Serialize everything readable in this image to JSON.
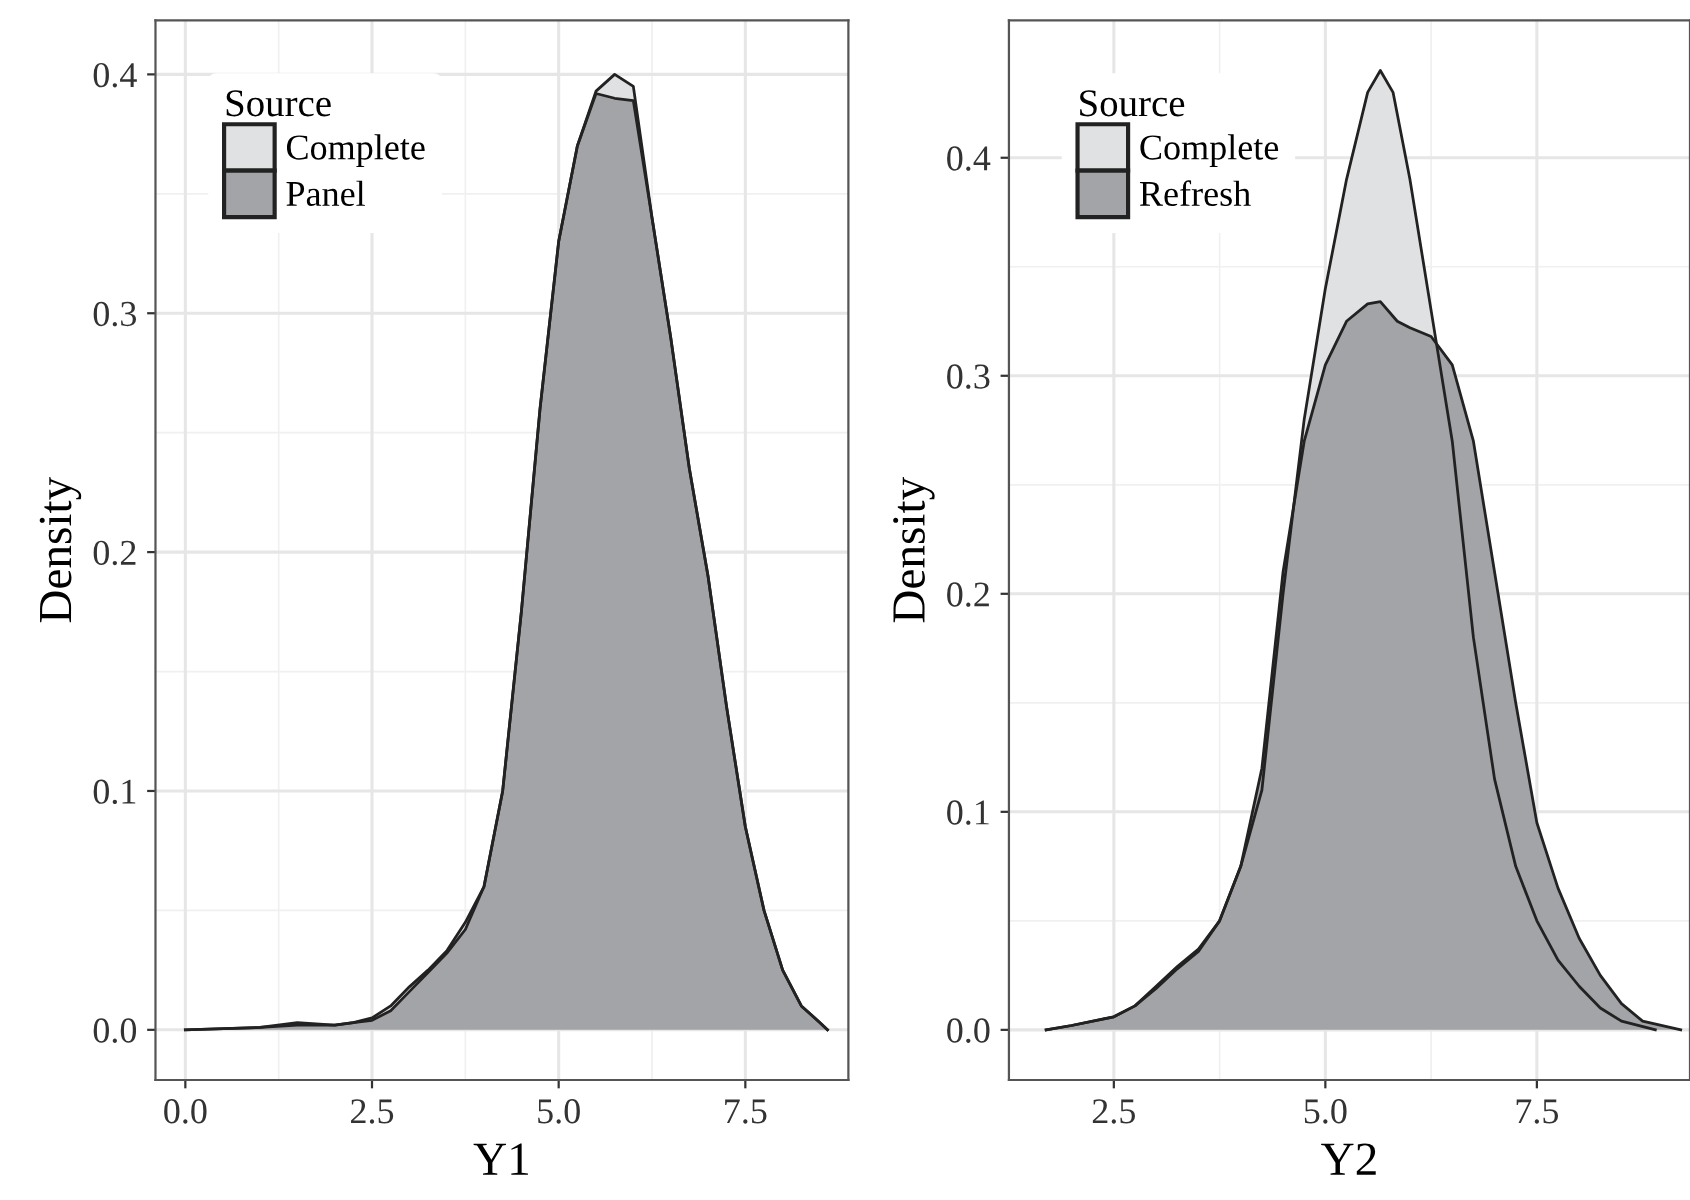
{
  "chart_data": [
    {
      "type": "area",
      "xlabel": "Y1",
      "ylabel": "Density",
      "legend_title": "Source",
      "legend": "top left",
      "grid": true,
      "xlim": [
        -0.4,
        8.88
      ],
      "ylim": [
        -0.021,
        0.4226
      ],
      "xticks": [
        {
          "value": 0,
          "label": "0.0"
        },
        {
          "value": 2.5,
          "label": "2.5"
        },
        {
          "value": 5,
          "label": "5.0"
        },
        {
          "value": 7.5,
          "label": "7.5"
        }
      ],
      "yticks": [
        {
          "value": 0,
          "label": "0.0"
        },
        {
          "value": 0.1,
          "label": "0.1"
        },
        {
          "value": 0.2,
          "label": "0.2"
        },
        {
          "value": 0.3,
          "label": "0.3"
        },
        {
          "value": 0.4,
          "label": "0.4"
        }
      ],
      "series": [
        {
          "name": "Complete",
          "color": "#e0e1e3",
          "x": [
            0,
            1.0,
            1.5,
            2.0,
            2.25,
            2.5,
            2.75,
            3.0,
            3.25,
            3.5,
            3.75,
            4.0,
            4.25,
            4.5,
            4.75,
            5.0,
            5.25,
            5.5,
            5.75,
            6.0,
            6.25,
            6.5,
            6.75,
            7.0,
            7.25,
            7.5,
            7.75,
            8.0,
            8.25,
            8.5,
            8.6
          ],
          "values": [
            0,
            0.001,
            0.002,
            0.002,
            0.003,
            0.005,
            0.01,
            0.018,
            0.025,
            0.033,
            0.045,
            0.06,
            0.1,
            0.175,
            0.26,
            0.33,
            0.37,
            0.393,
            0.4,
            0.395,
            0.34,
            0.29,
            0.235,
            0.19,
            0.135,
            0.085,
            0.05,
            0.025,
            0.01,
            0.003,
            0
          ]
        },
        {
          "name": "Panel",
          "color": "#a3a4a8",
          "x": [
            0,
            1.0,
            1.5,
            2.0,
            2.25,
            2.5,
            2.75,
            3.0,
            3.25,
            3.5,
            3.75,
            4.0,
            4.25,
            4.5,
            4.75,
            5.0,
            5.25,
            5.5,
            5.75,
            6.0,
            6.25,
            6.5,
            6.75,
            7.0,
            7.25,
            7.5,
            7.75,
            8.0,
            8.25,
            8.5,
            8.6
          ],
          "values": [
            0,
            0.001,
            0.003,
            0.002,
            0.003,
            0.004,
            0.008,
            0.016,
            0.024,
            0.032,
            0.042,
            0.06,
            0.1,
            0.175,
            0.26,
            0.33,
            0.37,
            0.392,
            0.39,
            0.389,
            0.34,
            0.29,
            0.235,
            0.19,
            0.135,
            0.085,
            0.05,
            0.025,
            0.01,
            0.003,
            0
          ]
        }
      ]
    },
    {
      "type": "area",
      "xlabel": "Y2",
      "ylabel": "Density",
      "legend_title": "Source",
      "legend": "top left",
      "grid": true,
      "xlim": [
        1.26,
        9.31
      ],
      "ylim": [
        -0.023,
        0.463
      ],
      "xticks": [
        {
          "value": 2.5,
          "label": "2.5"
        },
        {
          "value": 5,
          "label": "5.0"
        },
        {
          "value": 7.5,
          "label": "7.5"
        }
      ],
      "yticks": [
        {
          "value": 0,
          "label": "0.0"
        },
        {
          "value": 0.1,
          "label": "0.1"
        },
        {
          "value": 0.2,
          "label": "0.2"
        },
        {
          "value": 0.3,
          "label": "0.3"
        },
        {
          "value": 0.4,
          "label": "0.4"
        }
      ],
      "series": [
        {
          "name": "Complete",
          "color": "#e0e1e3",
          "x": [
            1.7,
            2.0,
            2.5,
            2.75,
            3.0,
            3.25,
            3.5,
            3.75,
            4.0,
            4.25,
            4.5,
            4.75,
            5.0,
            5.25,
            5.5,
            5.65,
            5.8,
            6.0,
            6.25,
            6.5,
            6.75,
            7.0,
            7.25,
            7.5,
            7.75,
            8.0,
            8.25,
            8.5,
            8.9
          ],
          "values": [
            0,
            0.002,
            0.006,
            0.011,
            0.02,
            0.029,
            0.037,
            0.05,
            0.075,
            0.11,
            0.2,
            0.28,
            0.34,
            0.39,
            0.43,
            0.44,
            0.43,
            0.39,
            0.33,
            0.27,
            0.18,
            0.115,
            0.075,
            0.05,
            0.032,
            0.02,
            0.01,
            0.004,
            0
          ]
        },
        {
          "name": "Refresh",
          "color": "#a3a4a8",
          "x": [
            1.7,
            2.0,
            2.5,
            2.75,
            3.0,
            3.25,
            3.5,
            3.75,
            4.0,
            4.25,
            4.5,
            4.75,
            5.0,
            5.25,
            5.5,
            5.65,
            5.85,
            6.0,
            6.25,
            6.5,
            6.75,
            7.0,
            7.25,
            7.5,
            7.75,
            8.0,
            8.25,
            8.5,
            8.75,
            9.2
          ],
          "values": [
            0,
            0.002,
            0.006,
            0.011,
            0.019,
            0.028,
            0.036,
            0.05,
            0.075,
            0.12,
            0.21,
            0.27,
            0.305,
            0.325,
            0.333,
            0.334,
            0.325,
            0.322,
            0.318,
            0.305,
            0.27,
            0.21,
            0.15,
            0.095,
            0.065,
            0.042,
            0.025,
            0.012,
            0.004,
            0
          ]
        }
      ]
    }
  ]
}
